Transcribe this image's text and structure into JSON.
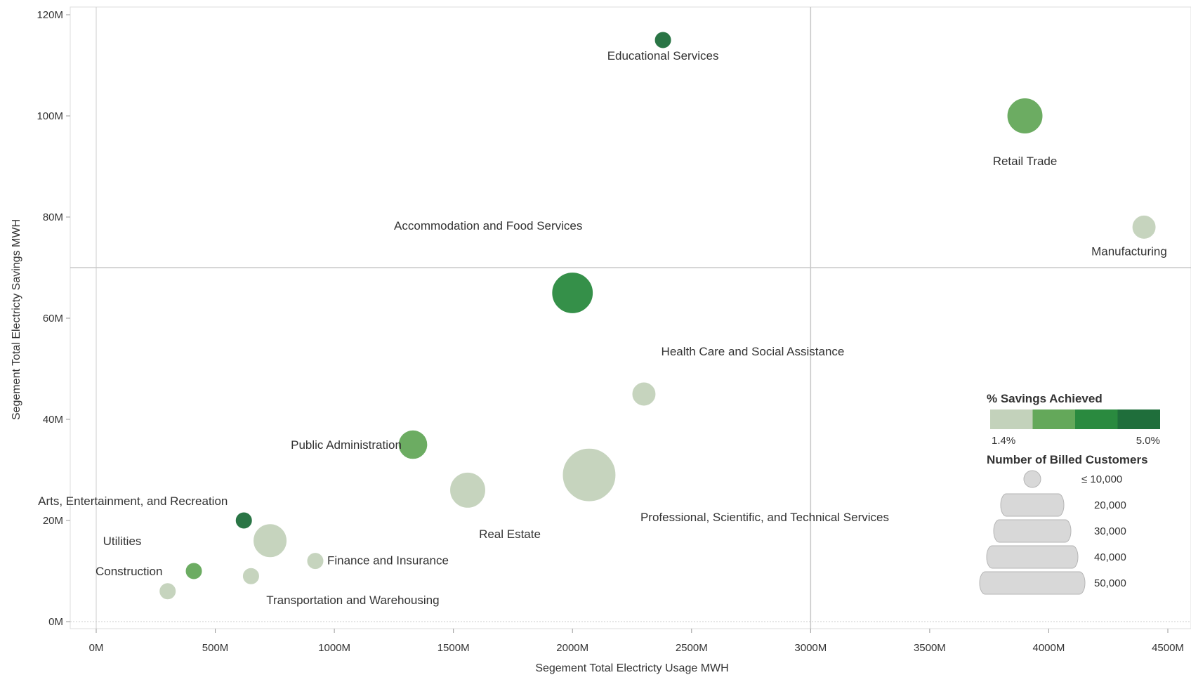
{
  "chart_data": {
    "type": "scatter",
    "xlabel": "Segement Total Electricty Usage MWH",
    "ylabel": "Segement Total Electricty Savings MWH",
    "x_ticks": [
      "0M",
      "500M",
      "1000M",
      "1500M",
      "2000M",
      "2500M",
      "3000M",
      "3500M",
      "4000M",
      "4500M"
    ],
    "y_ticks": [
      "0M",
      "20M",
      "40M",
      "60M",
      "80M",
      "100M",
      "120M"
    ],
    "xlim": [
      0,
      4500
    ],
    "ylim": [
      0,
      120
    ],
    "reference_lines": {
      "x": 3000,
      "y": 70
    },
    "grid": true,
    "points": [
      {
        "label": "Educational Services",
        "x": 2380,
        "y": 115,
        "savings_pct": 5.0,
        "customers": 10000,
        "color": "#1f6e3b"
      },
      {
        "label": "Retail Trade",
        "x": 3900,
        "y": 100,
        "savings_pct": 3.0,
        "customers": 45000,
        "color": "#64a85a"
      },
      {
        "label": "Manufacturing",
        "x": 4400,
        "y": 78,
        "savings_pct": 1.4,
        "customers": 20000,
        "color": "#c3d2bb"
      },
      {
        "label": "Accommodation and Food Services",
        "x": 2000,
        "y": 65,
        "savings_pct": 4.5,
        "customers": 60000,
        "color": "#2a8a3f"
      },
      {
        "label": "Health Care and Social Assistance",
        "x": 2300,
        "y": 45,
        "savings_pct": 1.4,
        "customers": 20000,
        "color": "#c3d2bb"
      },
      {
        "label": "Public Administration",
        "x": 1330,
        "y": 35,
        "savings_pct": 3.0,
        "customers": 30000,
        "color": "#64a85a"
      },
      {
        "label": "Real Estate",
        "x": 1560,
        "y": 26,
        "savings_pct": 1.4,
        "customers": 45000,
        "color": "#c3d2bb"
      },
      {
        "label": "Professional, Scientific, and Technical Services",
        "x": 2070,
        "y": 29,
        "savings_pct": 1.4,
        "customers": 100000,
        "color": "#c3d2bb"
      },
      {
        "label": "Arts, Entertainment, and Recreation",
        "x": 620,
        "y": 20,
        "savings_pct": 5.0,
        "customers": 10000,
        "color": "#1f6e3b"
      },
      {
        "label": "",
        "x": 730,
        "y": 16,
        "savings_pct": 1.4,
        "customers": 40000,
        "color": "#c3d2bb"
      },
      {
        "label": "Utilities",
        "x": 410,
        "y": 10,
        "savings_pct": 3.0,
        "customers": 10000,
        "color": "#64a85a"
      },
      {
        "label": "Finance and Insurance",
        "x": 920,
        "y": 12,
        "savings_pct": 1.4,
        "customers": 10000,
        "color": "#c3d2bb"
      },
      {
        "label": "Transportation and Warehousing",
        "x": 650,
        "y": 9,
        "savings_pct": 1.4,
        "customers": 10000,
        "color": "#c3d2bb"
      },
      {
        "label": "Construction",
        "x": 300,
        "y": 6,
        "savings_pct": 1.4,
        "customers": 10000,
        "color": "#c3d2bb"
      }
    ],
    "legend": {
      "color_title": "% Savings Achieved",
      "color_min_label": "1.4%",
      "color_max_label": "5.0%",
      "color_steps": [
        "#c3d2bb",
        "#64a85a",
        "#2a8a3f",
        "#1f6e3b"
      ],
      "size_title": "Number of Billed Customers",
      "size_items": [
        "≤ 10,000",
        "20,000",
        "30,000",
        "40,000",
        "50,000"
      ],
      "placement": "right"
    }
  }
}
